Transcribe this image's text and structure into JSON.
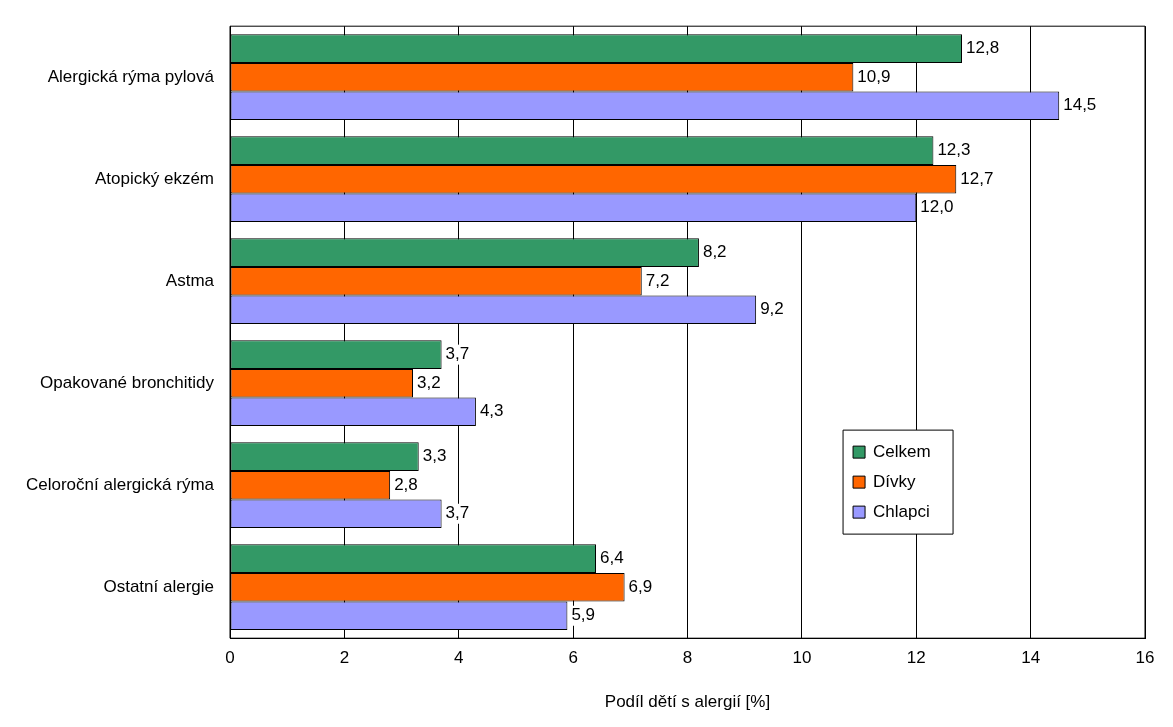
{
  "chart_data": {
    "type": "bar",
    "orientation": "horizontal",
    "xlabel": "Podíl dětí s alergií [%]",
    "categories": [
      "Alergická rýma pylová",
      "Atopický ekzém",
      "Astma",
      "Opakované bronchitidy",
      "Celoroční alergická rýma",
      "Ostatní alergie"
    ],
    "series": [
      {
        "name": "Celkem",
        "color": "#339966",
        "values": [
          12.8,
          12.3,
          8.2,
          3.7,
          3.3,
          6.4
        ],
        "value_labels": [
          "12,8",
          "12,3",
          "8,2",
          "3,7",
          "3,3",
          "6,4"
        ]
      },
      {
        "name": "Dívky",
        "color": "#ff6600",
        "values": [
          10.9,
          12.7,
          7.2,
          3.2,
          2.8,
          6.9
        ],
        "value_labels": [
          "10,9",
          "12,7",
          "7,2",
          "3,2",
          "2,8",
          "6,9"
        ]
      },
      {
        "name": "Chlapci",
        "color": "#9999ff",
        "values": [
          14.5,
          12.0,
          9.2,
          4.3,
          3.7,
          5.9
        ],
        "value_labels": [
          "14,5",
          "12,0",
          "9,2",
          "4,3",
          "3,7",
          "5,9"
        ]
      }
    ],
    "xlim": [
      0,
      16
    ],
    "xticks": [
      0,
      2,
      4,
      6,
      8,
      10,
      12,
      14,
      16
    ],
    "grid": "x",
    "legend": "right"
  }
}
